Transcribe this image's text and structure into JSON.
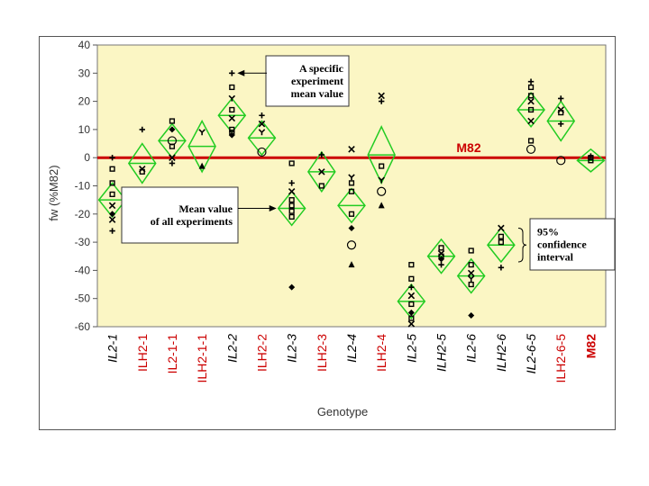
{
  "chart_data": {
    "type": "scatter",
    "title": "",
    "xlabel": "Genotype",
    "ylabel": "fw (%M82)",
    "ylim": [
      -60,
      40
    ],
    "yticks": [
      40,
      30,
      20,
      10,
      0,
      -10,
      -20,
      -30,
      -40,
      -50,
      -60
    ],
    "grid": false,
    "background": "#fbf6c4",
    "colors": {
      "reference_line": "#cc0000",
      "diamond": "#22cc22",
      "point": "#000000",
      "label_black": "#000000",
      "label_red": "#cc0000"
    },
    "reference_line": {
      "value": 0,
      "label": "M82"
    },
    "categories": [
      "IL2-1",
      "ILH2-1",
      "IL2-1-1",
      "ILH2-1-1",
      "IL2-2",
      "ILH2-2",
      "IL2-3",
      "ILH2-3",
      "IL2-4",
      "ILH2-4",
      "IL2-5",
      "ILH2-5",
      "IL2-6",
      "ILH2-6",
      "IL2-6-5",
      "ILH2-6-5",
      "M82"
    ],
    "category_colors": [
      "#000000",
      "#cc0000",
      "#cc0000",
      "#cc0000",
      "#000000",
      "#cc0000",
      "#000000",
      "#cc0000",
      "#000000",
      "#cc0000",
      "#000000",
      "#000000",
      "#000000",
      "#000000",
      "#000000",
      "#cc0000",
      "#cc0000"
    ],
    "category_bold": [
      false,
      false,
      false,
      false,
      false,
      false,
      false,
      false,
      false,
      false,
      false,
      false,
      false,
      false,
      false,
      false,
      true
    ],
    "category_italic": [
      true,
      false,
      false,
      false,
      true,
      false,
      true,
      false,
      true,
      false,
      true,
      true,
      true,
      true,
      true,
      false,
      false
    ],
    "means": [
      -15,
      -2,
      6,
      4,
      15,
      7,
      -18,
      -5,
      -17,
      1,
      -51,
      -35,
      -42,
      -31,
      17,
      13,
      -1
    ],
    "ci": [
      6,
      7,
      6,
      9,
      6,
      6,
      6,
      7,
      6,
      10,
      6,
      6,
      6,
      6,
      6,
      7,
      4
    ],
    "points": [
      [
        [
          -26,
          "plus"
        ],
        [
          -22,
          "x"
        ],
        [
          -20,
          "diamond"
        ],
        [
          -17,
          "x"
        ],
        [
          -13,
          "square"
        ],
        [
          -9,
          "square"
        ],
        [
          -4,
          "square"
        ],
        [
          0,
          "plus"
        ]
      ],
      [
        [
          -4,
          "x"
        ],
        [
          -5,
          "square"
        ],
        [
          10,
          "plus"
        ]
      ],
      [
        [
          -2,
          "plus"
        ],
        [
          0,
          "x"
        ],
        [
          4,
          "square"
        ],
        [
          6,
          "circle"
        ],
        [
          10,
          "diamond"
        ],
        [
          13,
          "square"
        ]
      ],
      [
        [
          -3,
          "triangle"
        ],
        [
          9,
          "y"
        ]
      ],
      [
        [
          8,
          "diamond"
        ],
        [
          9,
          "square"
        ],
        [
          10,
          "square"
        ],
        [
          14,
          "x"
        ],
        [
          17,
          "square"
        ],
        [
          21,
          "y"
        ],
        [
          25,
          "square"
        ],
        [
          30,
          "plus"
        ]
      ],
      [
        [
          2,
          "circle"
        ],
        [
          9,
          "y"
        ],
        [
          12,
          "x"
        ],
        [
          15,
          "plus"
        ]
      ],
      [
        [
          -46,
          "diamond"
        ],
        [
          -21,
          "square"
        ],
        [
          -19,
          "square"
        ],
        [
          -17,
          "square"
        ],
        [
          -15,
          "square"
        ],
        [
          -12,
          "x"
        ],
        [
          -9,
          "plus"
        ],
        [
          -2,
          "square"
        ]
      ],
      [
        [
          -10,
          "square"
        ],
        [
          -5,
          "x"
        ],
        [
          1,
          "plus"
        ]
      ],
      [
        [
          -38,
          "triangle"
        ],
        [
          -31,
          "circle"
        ],
        [
          -25,
          "diamond"
        ],
        [
          -20,
          "square"
        ],
        [
          -12,
          "square"
        ],
        [
          -9,
          "square"
        ],
        [
          -7,
          "y"
        ],
        [
          3,
          "x"
        ]
      ],
      [
        [
          -17,
          "triangle"
        ],
        [
          -12,
          "circle"
        ],
        [
          -8,
          "y"
        ],
        [
          -3,
          "square"
        ],
        [
          20,
          "plus"
        ],
        [
          22,
          "x"
        ]
      ],
      [
        [
          -59,
          "x"
        ],
        [
          -57,
          "square"
        ],
        [
          -55,
          "diamond"
        ],
        [
          -52,
          "square"
        ],
        [
          -49,
          "x"
        ],
        [
          -46,
          "plus"
        ],
        [
          -43,
          "square"
        ],
        [
          -38,
          "square"
        ]
      ],
      [
        [
          -38,
          "plus"
        ],
        [
          -36,
          "diamond"
        ],
        [
          -35,
          "square"
        ],
        [
          -34,
          "x"
        ],
        [
          -32,
          "square"
        ]
      ],
      [
        [
          -56,
          "diamond"
        ],
        [
          -45,
          "square"
        ],
        [
          -43,
          "y"
        ],
        [
          -41,
          "x"
        ],
        [
          -38,
          "square"
        ],
        [
          -33,
          "square"
        ]
      ],
      [
        [
          -39,
          "plus"
        ],
        [
          -30,
          "square"
        ],
        [
          -28,
          "square"
        ],
        [
          -25,
          "x"
        ]
      ],
      [
        [
          3,
          "circle"
        ],
        [
          6,
          "square"
        ],
        [
          13,
          "x"
        ],
        [
          17,
          "square"
        ],
        [
          20,
          "x"
        ],
        [
          22,
          "square"
        ],
        [
          25,
          "square"
        ],
        [
          27,
          "plus"
        ]
      ],
      [
        [
          -1,
          "circle"
        ],
        [
          12,
          "plus"
        ],
        [
          16,
          "square"
        ],
        [
          17,
          "x"
        ],
        [
          21,
          "plus"
        ]
      ],
      [
        [
          -1,
          "square"
        ],
        [
          0,
          "square"
        ],
        [
          0.5,
          "plus"
        ]
      ]
    ],
    "annotations": [
      {
        "lines": [
          "A specific",
          "experiment",
          "mean value"
        ],
        "points_to": {
          "category": 4,
          "value": 30
        }
      },
      {
        "lines": [
          "Mean value",
          "of all experiments"
        ],
        "points_to": {
          "category": 6,
          "value": -18
        }
      },
      {
        "lines": [
          "95%",
          "confidence",
          "interval"
        ],
        "points_to": {
          "category": 13,
          "value": -31
        }
      }
    ]
  }
}
